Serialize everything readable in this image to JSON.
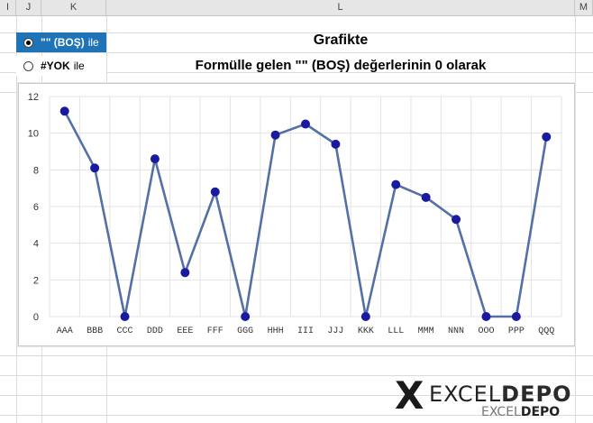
{
  "columns": [
    "I",
    "J",
    "K",
    "L",
    "M"
  ],
  "options": [
    {
      "label": "\"\" (BOŞ)",
      "suffix": "ile",
      "selected": true
    },
    {
      "label": "#YOK",
      "suffix": "ile",
      "selected": false
    }
  ],
  "heading": {
    "title": "Grafikte",
    "subtitle": "Formülle gelen \"\" (BOŞ)  değerlerinin  0  olarak"
  },
  "colors": {
    "line": "#5470a6",
    "marker": "#1a1aa0",
    "selected_bg": "#1f73b7"
  },
  "chart_data": {
    "type": "line",
    "categories": [
      "AAA",
      "BBB",
      "CCC",
      "DDD",
      "EEE",
      "FFF",
      "GGG",
      "HHH",
      "III",
      "JJJ",
      "KKK",
      "LLL",
      "MMM",
      "NNN",
      "OOO",
      "PPP",
      "QQQ"
    ],
    "values": [
      11.2,
      8.1,
      0,
      8.6,
      2.4,
      6.8,
      0,
      9.9,
      10.5,
      9.4,
      0,
      7.2,
      6.5,
      5.3,
      0,
      0,
      9.8
    ],
    "yticks": [
      0,
      2,
      4,
      6,
      8,
      10,
      12
    ],
    "ylim": [
      0,
      12
    ],
    "grid": true
  },
  "logo": {
    "x": "X",
    "word1": "EXCEL",
    "word2": "DEPO",
    "small1": "EXCEL",
    "small2": "DEPO"
  }
}
